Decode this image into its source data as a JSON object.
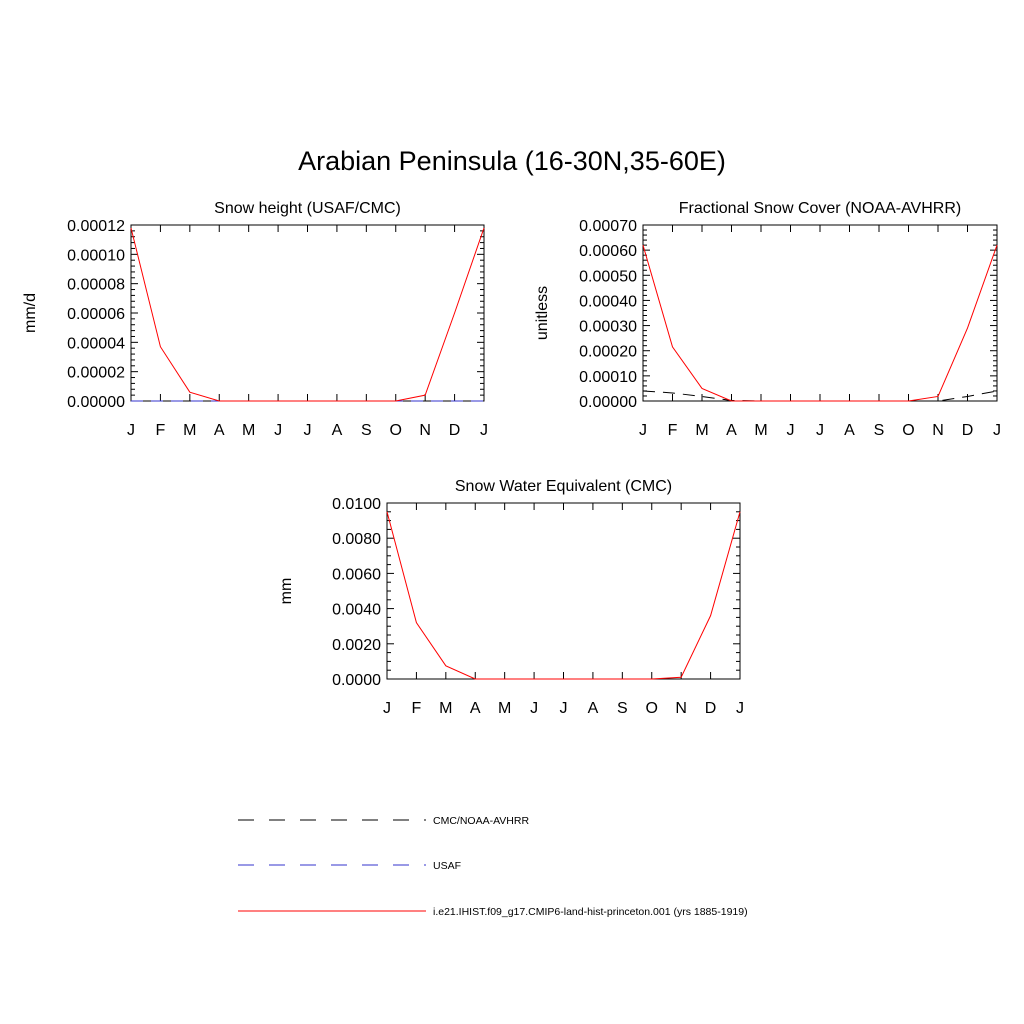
{
  "page": {
    "title": "Arabian Peninsula (16-30N,35-60E)"
  },
  "chart_data": [
    {
      "type": "line",
      "title": "Snow height (USAF/CMC)",
      "ylabel": "mm/d",
      "xlabel": "",
      "categories": [
        "J",
        "F",
        "M",
        "A",
        "M",
        "J",
        "J",
        "A",
        "S",
        "O",
        "N",
        "D",
        "J"
      ],
      "ylim": [
        0,
        0.00012
      ],
      "yticks": [
        "0.00000",
        "0.00002",
        "0.00004",
        "0.00006",
        "0.00008",
        "0.00010",
        "0.00012"
      ],
      "grid": false,
      "series": [
        {
          "name": "i.e21.IHIST.f09_g17.CMIP6-land-hist-princeton.001 (yrs 1885-1919)",
          "color": "#ff0000",
          "dash": "solid",
          "values": [
            0.000118,
            3.7e-05,
            6e-06,
            0,
            0,
            0,
            0,
            0,
            0,
            0,
            4e-06,
            6e-05,
            0.000118
          ]
        },
        {
          "name": "CMC/NOAA-AVHRR",
          "color": "#000000",
          "dash": "dashed",
          "values": [
            0,
            0,
            0,
            0,
            0,
            0,
            0,
            0,
            0,
            0,
            0,
            0,
            0
          ]
        },
        {
          "name": "USAF",
          "color": "#3333cc",
          "dash": "dashed",
          "values": [
            0,
            0,
            0,
            0,
            0,
            0,
            0,
            0,
            0,
            0,
            0,
            0,
            0
          ]
        }
      ]
    },
    {
      "type": "line",
      "title": "Fractional Snow Cover (NOAA-AVHRR)",
      "ylabel": "unitless",
      "xlabel": "",
      "categories": [
        "J",
        "F",
        "M",
        "A",
        "M",
        "J",
        "J",
        "A",
        "S",
        "O",
        "N",
        "D",
        "J"
      ],
      "ylim": [
        0,
        0.0007
      ],
      "yticks": [
        "0.00000",
        "0.00010",
        "0.00020",
        "0.00030",
        "0.00040",
        "0.00050",
        "0.00060",
        "0.00070"
      ],
      "grid": false,
      "series": [
        {
          "name": "i.e21.IHIST.f09_g17.CMIP6-land-hist-princeton.001 (yrs 1885-1919)",
          "color": "#ff0000",
          "dash": "solid",
          "values": [
            0.00062,
            0.000215,
            5e-05,
            0,
            0,
            0,
            0,
            0,
            0,
            0,
            1.8e-05,
            0.00029,
            0.00062
          ]
        },
        {
          "name": "CMC/NOAA-AVHRR",
          "color": "#000000",
          "dash": "dashed",
          "values": [
            4e-05,
            3.2e-05,
            1.8e-05,
            2e-06,
            0,
            0,
            0,
            0,
            0,
            0,
            0,
            1.8e-05,
            4e-05
          ]
        }
      ]
    },
    {
      "type": "line",
      "title": "Snow Water Equivalent (CMC)",
      "ylabel": "mm",
      "xlabel": "",
      "categories": [
        "J",
        "F",
        "M",
        "A",
        "M",
        "J",
        "J",
        "A",
        "S",
        "O",
        "N",
        "D",
        "J"
      ],
      "ylim": [
        0,
        0.01
      ],
      "yticks": [
        "0.0000",
        "0.0020",
        "0.0040",
        "0.0060",
        "0.0080",
        "0.0100"
      ],
      "grid": false,
      "series": [
        {
          "name": "i.e21.IHIST.f09_g17.CMIP6-land-hist-princeton.001 (yrs 1885-1919)",
          "color": "#ff0000",
          "dash": "solid",
          "values": [
            0.0095,
            0.0032,
            0.00075,
            0,
            0,
            0,
            0,
            0,
            0,
            0,
            0.0001,
            0.0036,
            0.0095
          ]
        },
        {
          "name": "CMC/NOAA-AVHRR",
          "color": "#000000",
          "dash": "dashed",
          "values": [
            0,
            0,
            0,
            0,
            0,
            0,
            0,
            0,
            0,
            0,
            0,
            0,
            0
          ]
        }
      ]
    }
  ],
  "legend": {
    "items": [
      {
        "label": "CMC/NOAA-AVHRR",
        "color": "#000000",
        "dash": "dashed"
      },
      {
        "label": "USAF",
        "color": "#3333cc",
        "dash": "dashed"
      },
      {
        "label": "i.e21.IHIST.f09_g17.CMIP6-land-hist-princeton.001 (yrs 1885-1919)",
        "color": "#ff0000",
        "dash": "solid"
      }
    ]
  }
}
